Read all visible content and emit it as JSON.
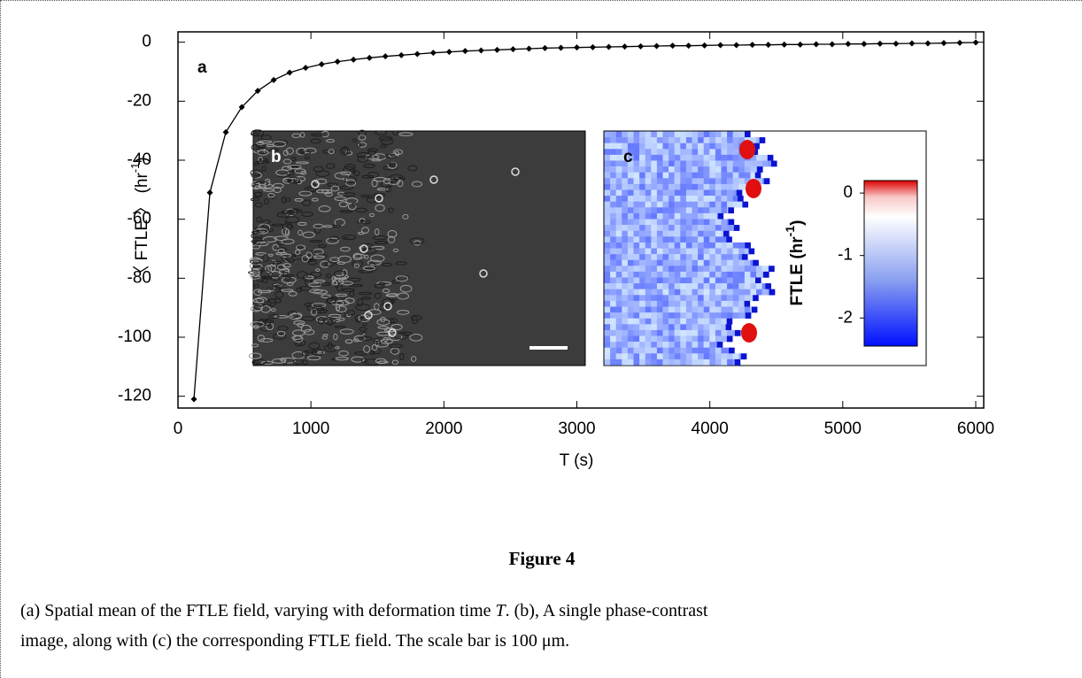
{
  "chart_data": {
    "type": "line",
    "panel_label": "a",
    "x": [
      120,
      240,
      360,
      480,
      600,
      720,
      840,
      960,
      1080,
      1200,
      1320,
      1440,
      1560,
      1680,
      1800,
      1920,
      2040,
      2160,
      2280,
      2400,
      2520,
      2640,
      2760,
      2880,
      3000,
      3120,
      3240,
      3360,
      3480,
      3600,
      3720,
      3840,
      3960,
      4080,
      4200,
      4320,
      4440,
      4560,
      4680,
      4800,
      4920,
      5040,
      5160,
      5280,
      5400,
      5520,
      5640,
      5760,
      5880,
      6000
    ],
    "values": [
      -121,
      -51,
      -30.5,
      -22,
      -16.5,
      -12.8,
      -10.3,
      -8.7,
      -7.5,
      -6.6,
      -5.9,
      -5.3,
      -4.8,
      -4.4,
      -4.0,
      -3.6,
      -3.3,
      -3.0,
      -2.8,
      -2.6,
      -2.4,
      -2.2,
      -2.0,
      -1.9,
      -1.8,
      -1.7,
      -1.6,
      -1.5,
      -1.4,
      -1.3,
      -1.2,
      -1.2,
      -1.1,
      -1.0,
      -1.0,
      -0.9,
      -0.9,
      -0.8,
      -0.8,
      -0.7,
      -0.7,
      -0.6,
      -0.6,
      -0.5,
      -0.5,
      -0.4,
      -0.4,
      -0.3,
      -0.2,
      -0.1
    ],
    "color": "#000000",
    "xlim": [
      0,
      6060
    ],
    "ylim": [
      -124,
      3.5
    ],
    "xticks": [
      0,
      1000,
      2000,
      3000,
      4000,
      5000,
      6000
    ],
    "yticks": [
      0,
      -20,
      -40,
      -60,
      -80,
      -100,
      -120
    ],
    "xlabel": "T (s)",
    "ylabel": {
      "main": "〈 FTLE 〉 (hr",
      "sup": "-1",
      "end": ")"
    }
  },
  "insets": {
    "b": {
      "label": "b"
    },
    "c": {
      "label": "c",
      "colorbar": {
        "clim": [
          -2.45,
          0.2
        ],
        "ticks": [
          0,
          -1,
          -2
        ],
        "label_main": "FTLE (hr",
        "label_sup": "-1",
        "label_end": ")"
      }
    }
  },
  "caption": {
    "title": "Figure 4",
    "parts": [
      "(a) Spatial mean of the FTLE field, varying with deformation time ",
      "T",
      ". (b), A single phase-contrast",
      "image, along with (c) the corresponding FTLE field. The scale bar is 100 μm."
    ]
  }
}
